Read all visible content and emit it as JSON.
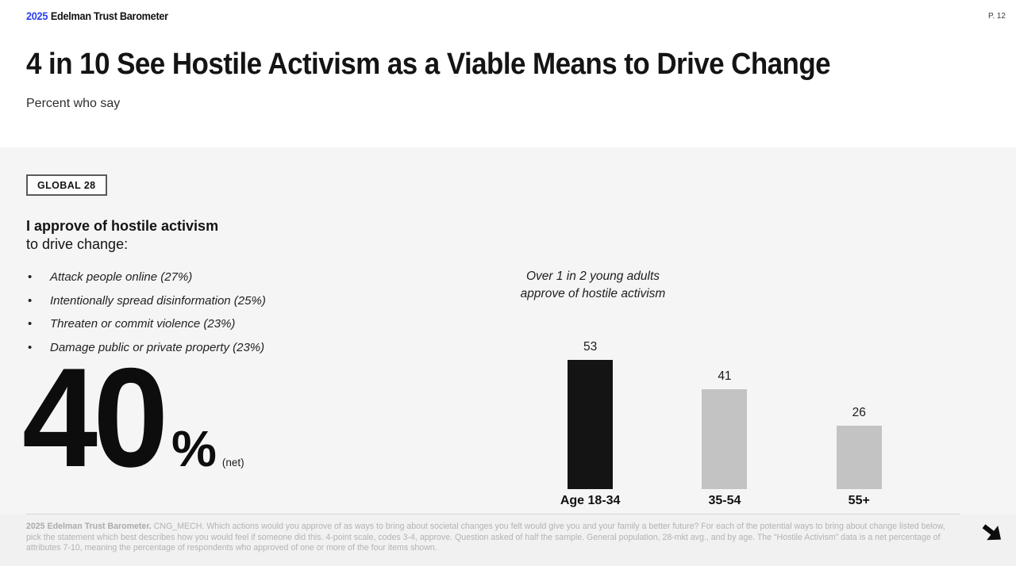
{
  "header": {
    "logo_year": "2025",
    "logo_name": "Edelman Trust Barometer",
    "page_number": "P. 12"
  },
  "title": "4 in 10 See Hostile Activism as a Viable Means to Drive Change",
  "subtitle": "Percent who say",
  "panel": {
    "badge": "GLOBAL 28",
    "statement_bold": "I approve of hostile activism",
    "statement_rest": "to drive change:",
    "bullets": [
      "Attack people online (27%)",
      "Intentionally spread disinformation (25%)",
      "Threaten or commit violence (23%)",
      "Damage public or private property (23%)"
    ],
    "big_stat": {
      "value": "40",
      "percent_sign": "%",
      "suffix": "(net)"
    }
  },
  "chart_data": {
    "type": "bar",
    "annotation": [
      "Over 1 in 2 young adults",
      "approve of hostile activism"
    ],
    "categories": [
      "Age 18-34",
      "35-54",
      "55+"
    ],
    "values": [
      53,
      41,
      26
    ],
    "bar_colors": [
      "#141414",
      "#c3c3c4",
      "#c3c3c4"
    ],
    "value_labels": [
      "53",
      "41",
      "26"
    ],
    "ylim": [
      0,
      60
    ],
    "grid": false,
    "legend": "none",
    "title": "",
    "xlabel": "",
    "ylabel": ""
  },
  "footer": {
    "source_bold": "2025 Edelman Trust Barometer.",
    "text": "CNG_MECH. Which actions would you approve of as ways to bring about societal changes you felt would give you and your family a better future? For each of the potential ways to bring about change listed below, pick the statement which best describes how you would feel if someone did this. 4-point scale, codes 3-4, approve. Question asked of half the sample. General population, 28-mkt avg., and by age. The “Hostile Activism” data is a net percentage of attributes 7-10, meaning the percentage of respondents who approved of one or more of the four items shown.",
    "arrow_icon": "arrow-down-right-icon"
  },
  "colors": {
    "brand_blue": "#2b40f0",
    "panel_bg": "#f5f5f6",
    "bar_black": "#141414",
    "bar_gray": "#c3c3c4",
    "footnote_gray": "#b3b3b4"
  }
}
